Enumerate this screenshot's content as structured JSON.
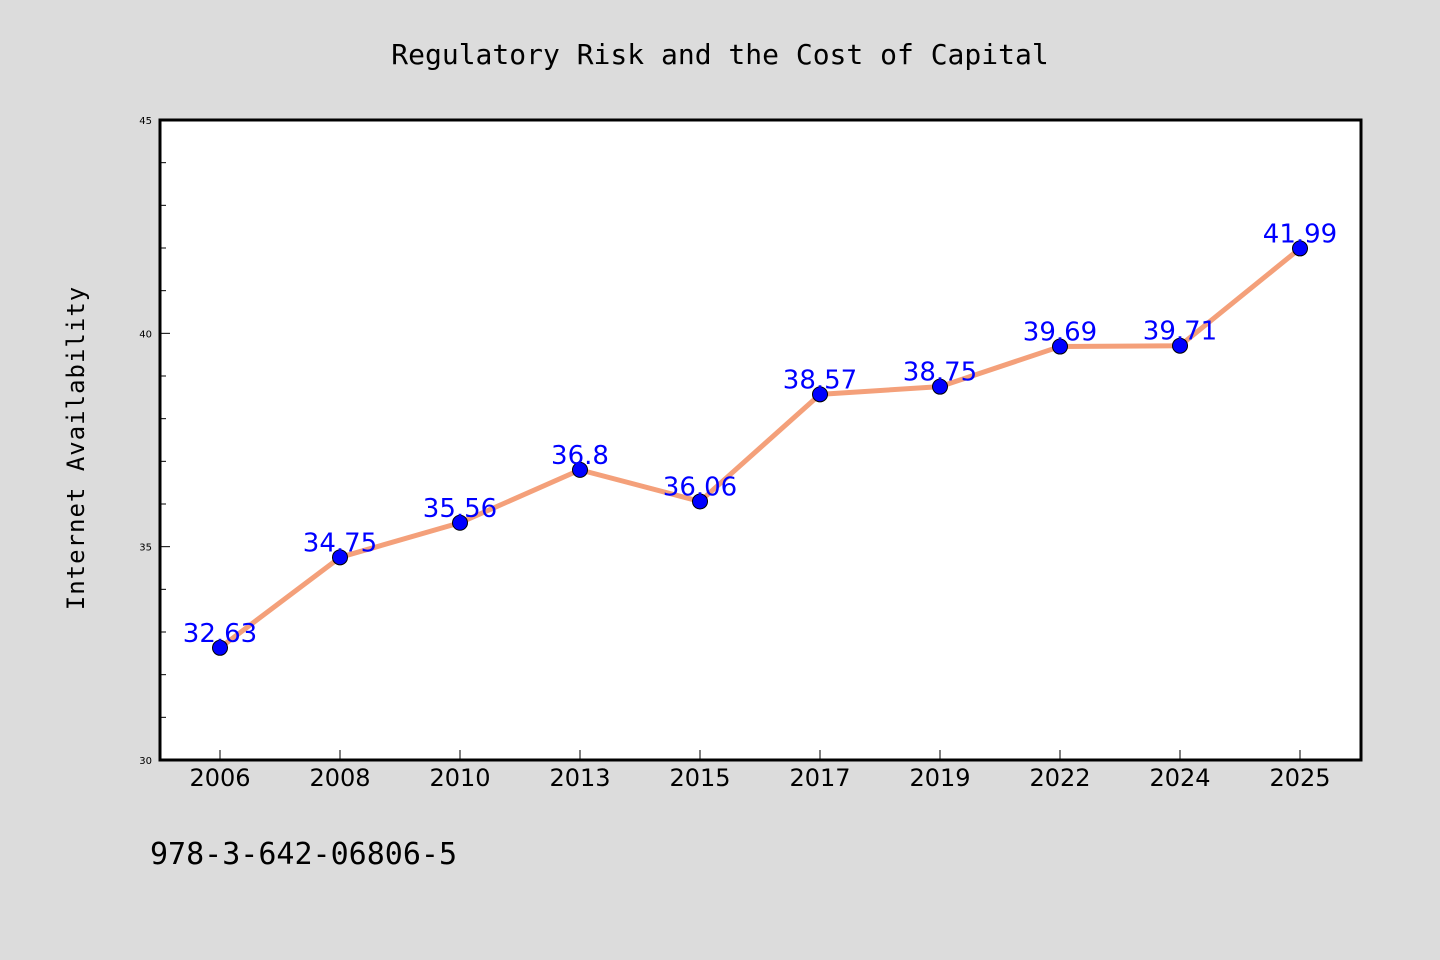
{
  "chart_data": {
    "type": "line",
    "title": "Regulatory Risk and the Cost of Capital",
    "xlabel": "",
    "ylabel": "Internet Availability",
    "categories": [
      "2006",
      "2008",
      "2010",
      "2013",
      "2015",
      "2017",
      "2019",
      "2022",
      "2024",
      "2025"
    ],
    "series": [
      {
        "values": [
          32.63,
          34.75,
          35.56,
          36.8,
          36.06,
          38.57,
          38.75,
          39.69,
          39.71,
          41.99
        ],
        "labels": [
          "32.63",
          "34.75",
          "35.56",
          "36.8",
          "36.06",
          "38.57",
          "38.75",
          "39.69",
          "39.71",
          "41.99"
        ]
      }
    ],
    "ylim": [
      30,
      45
    ],
    "yticks": [
      "30",
      "35",
      "40",
      "45"
    ],
    "grid": false,
    "legend": "none",
    "line_color": "#f4a07a",
    "marker_color": "#0000ff",
    "label_color": "#0000ff"
  },
  "footnote": "978-3-642-06806-5",
  "colors": {
    "background": "#dcdcdc",
    "plot_background": "#ffffff",
    "axis": "#000000"
  }
}
